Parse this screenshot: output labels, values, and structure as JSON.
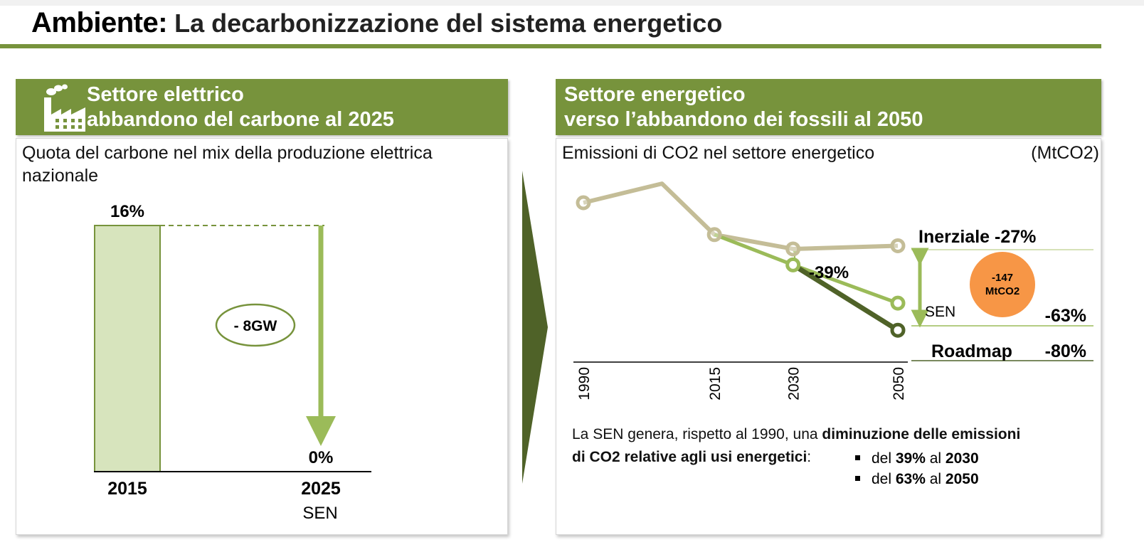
{
  "header": {
    "title_main": "Ambiente:",
    "title_sub": " La decarbonizzazione del sistema energetico"
  },
  "left_panel": {
    "header_line1": "Settore elettrico",
    "header_line2": "abbandono del carbone al 2025",
    "icon": "factory-icon",
    "subtitle_line1": "Quota del carbone nel mix della produzione elettrica",
    "subtitle_line2": "nazionale",
    "reduction_label": "- 8GW",
    "sublabel_2025": "SEN"
  },
  "right_panel": {
    "header_line1": "Settore energetico",
    "header_line2": "verso l’abbandono dei fossili al 2050",
    "subtitle": "Emissioni di CO2 nel settore energetico",
    "unit": "(MtCO2)",
    "label_inerziale": "Inerziale -27%",
    "label_39": "-39%",
    "label_sen": "SEN",
    "label_63": "-63%",
    "label_roadmap": "Roadmap",
    "label_80": "-80%",
    "badge_line1": "-147",
    "badge_line2": "MtCO2",
    "note_line1_plain": "La SEN genera, rispetto al 1990, una ",
    "note_line1_bold": "diminuzione delle emissioni",
    "note_line2_bold": "di CO2 relative agli usi energetici",
    "note_line2_colon": ":",
    "bullet1_pre": "del ",
    "bullet1_pct": "39%",
    "bullet1_mid": " al ",
    "bullet1_year": "2030",
    "bullet2_pre": "del ",
    "bullet2_pct": "63%",
    "bullet2_mid": " al ",
    "bullet2_year": "2050"
  },
  "colors": {
    "brand_green": "#77933c",
    "bar_fill": "#d7e4bd",
    "light_green": "#9bbb59",
    "dark_green": "#4f6228",
    "tan": "#c4bd97",
    "orange": "#f79646"
  },
  "chart_data": [
    {
      "type": "bar",
      "categories": [
        "2015",
        "2025"
      ],
      "values": [
        16,
        0
      ],
      "value_labels": [
        "16%",
        "0%"
      ],
      "ylim": [
        0,
        16
      ]
    },
    {
      "type": "line",
      "x": [
        "1990",
        "2015",
        "2030",
        "2050"
      ],
      "series": [
        {
          "name": "Inerziale",
          "x": [
            1990,
            2005,
            2015,
            2030,
            2050
          ],
          "values": [
            100,
            112,
            80,
            71,
            73
          ],
          "marked_x": [
            1990,
            2015,
            2030,
            2050
          ]
        },
        {
          "name": "SEN",
          "x": [
            2015,
            2030,
            2050
          ],
          "values": [
            80,
            61,
            37
          ],
          "marked_x": [
            2030,
            2050
          ]
        },
        {
          "name": "Roadmap",
          "x": [
            2030,
            2050
          ],
          "values": [
            61,
            20
          ],
          "marked_x": [
            2050
          ]
        }
      ],
      "ylim": [
        0,
        120
      ]
    }
  ]
}
